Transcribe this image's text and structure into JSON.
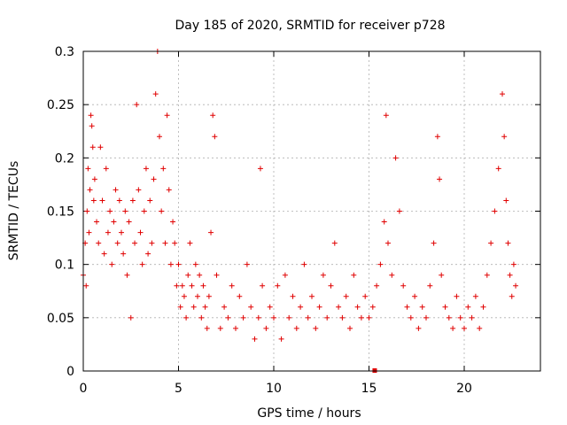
{
  "chart_data": {
    "type": "scatter",
    "title": "Day 185 of 2020, SRMTID for receiver p728",
    "xlabel": "GPS time / hours",
    "ylabel": "SRMTID / TECUs",
    "xlim": [
      0,
      24
    ],
    "ylim": [
      0,
      0.3
    ],
    "x_ticks": [
      0,
      5,
      10,
      15,
      20
    ],
    "x_tick_labels": [
      "0",
      "5",
      "10",
      "15",
      "20"
    ],
    "y_ticks": [
      0,
      0.05,
      0.1,
      0.15,
      0.2,
      0.25,
      0.3
    ],
    "y_tick_labels": [
      "0",
      "0.05",
      "0.1",
      "0.15",
      "0.2",
      "0.25",
      "0.3"
    ],
    "grid": true,
    "marker": "+",
    "color": "#e00000",
    "outlier_marker": {
      "x": 15.3,
      "y": 0.0,
      "shape": "square"
    },
    "series": [
      {
        "name": "SRMTID",
        "points": [
          [
            0.0,
            0.09
          ],
          [
            0.1,
            0.12
          ],
          [
            0.15,
            0.08
          ],
          [
            0.2,
            0.15
          ],
          [
            0.25,
            0.19
          ],
          [
            0.3,
            0.13
          ],
          [
            0.35,
            0.17
          ],
          [
            0.4,
            0.24
          ],
          [
            0.45,
            0.23
          ],
          [
            0.5,
            0.21
          ],
          [
            0.55,
            0.16
          ],
          [
            0.6,
            0.18
          ],
          [
            0.7,
            0.14
          ],
          [
            0.8,
            0.12
          ],
          [
            0.9,
            0.21
          ],
          [
            1.0,
            0.16
          ],
          [
            1.1,
            0.11
          ],
          [
            1.2,
            0.19
          ],
          [
            1.3,
            0.13
          ],
          [
            1.4,
            0.15
          ],
          [
            1.5,
            0.1
          ],
          [
            1.6,
            0.14
          ],
          [
            1.7,
            0.17
          ],
          [
            1.8,
            0.12
          ],
          [
            1.9,
            0.16
          ],
          [
            2.0,
            0.13
          ],
          [
            2.1,
            0.11
          ],
          [
            2.2,
            0.15
          ],
          [
            2.3,
            0.09
          ],
          [
            2.4,
            0.14
          ],
          [
            2.5,
            0.05
          ],
          [
            2.6,
            0.16
          ],
          [
            2.7,
            0.12
          ],
          [
            2.8,
            0.25
          ],
          [
            2.9,
            0.17
          ],
          [
            3.0,
            0.13
          ],
          [
            3.1,
            0.1
          ],
          [
            3.2,
            0.15
          ],
          [
            3.3,
            0.19
          ],
          [
            3.4,
            0.11
          ],
          [
            3.5,
            0.16
          ],
          [
            3.6,
            0.12
          ],
          [
            3.7,
            0.18
          ],
          [
            3.8,
            0.26
          ],
          [
            3.9,
            0.3
          ],
          [
            4.0,
            0.22
          ],
          [
            4.1,
            0.15
          ],
          [
            4.2,
            0.19
          ],
          [
            4.3,
            0.12
          ],
          [
            4.4,
            0.24
          ],
          [
            4.5,
            0.17
          ],
          [
            4.6,
            0.1
          ],
          [
            4.7,
            0.14
          ],
          [
            4.8,
            0.12
          ],
          [
            4.9,
            0.08
          ],
          [
            5.0,
            0.1
          ],
          [
            5.1,
            0.06
          ],
          [
            5.2,
            0.08
          ],
          [
            5.3,
            0.07
          ],
          [
            5.4,
            0.05
          ],
          [
            5.5,
            0.09
          ],
          [
            5.6,
            0.12
          ],
          [
            5.7,
            0.08
          ],
          [
            5.8,
            0.06
          ],
          [
            5.9,
            0.1
          ],
          [
            6.0,
            0.07
          ],
          [
            6.1,
            0.09
          ],
          [
            6.2,
            0.05
          ],
          [
            6.3,
            0.08
          ],
          [
            6.4,
            0.06
          ],
          [
            6.5,
            0.04
          ],
          [
            6.6,
            0.07
          ],
          [
            6.7,
            0.13
          ],
          [
            6.8,
            0.24
          ],
          [
            6.9,
            0.22
          ],
          [
            7.0,
            0.09
          ],
          [
            7.2,
            0.04
          ],
          [
            7.4,
            0.06
          ],
          [
            7.6,
            0.05
          ],
          [
            7.8,
            0.08
          ],
          [
            8.0,
            0.04
          ],
          [
            8.2,
            0.07
          ],
          [
            8.4,
            0.05
          ],
          [
            8.6,
            0.1
          ],
          [
            8.8,
            0.06
          ],
          [
            9.0,
            0.03
          ],
          [
            9.2,
            0.05
          ],
          [
            9.3,
            0.19
          ],
          [
            9.4,
            0.08
          ],
          [
            9.6,
            0.04
          ],
          [
            9.8,
            0.06
          ],
          [
            10.0,
            0.05
          ],
          [
            10.2,
            0.08
          ],
          [
            10.4,
            0.03
          ],
          [
            10.6,
            0.09
          ],
          [
            10.8,
            0.05
          ],
          [
            11.0,
            0.07
          ],
          [
            11.2,
            0.04
          ],
          [
            11.4,
            0.06
          ],
          [
            11.6,
            0.1
          ],
          [
            11.8,
            0.05
          ],
          [
            12.0,
            0.07
          ],
          [
            12.2,
            0.04
          ],
          [
            12.4,
            0.06
          ],
          [
            12.6,
            0.09
          ],
          [
            12.8,
            0.05
          ],
          [
            13.0,
            0.08
          ],
          [
            13.2,
            0.12
          ],
          [
            13.4,
            0.06
          ],
          [
            13.6,
            0.05
          ],
          [
            13.8,
            0.07
          ],
          [
            14.0,
            0.04
          ],
          [
            14.2,
            0.09
          ],
          [
            14.4,
            0.06
          ],
          [
            14.6,
            0.05
          ],
          [
            14.8,
            0.07
          ],
          [
            15.0,
            0.05
          ],
          [
            15.2,
            0.06
          ],
          [
            15.4,
            0.08
          ],
          [
            15.6,
            0.1
          ],
          [
            15.8,
            0.14
          ],
          [
            15.9,
            0.24
          ],
          [
            16.0,
            0.12
          ],
          [
            16.2,
            0.09
          ],
          [
            16.4,
            0.2
          ],
          [
            16.6,
            0.15
          ],
          [
            16.8,
            0.08
          ],
          [
            17.0,
            0.06
          ],
          [
            17.2,
            0.05
          ],
          [
            17.4,
            0.07
          ],
          [
            17.6,
            0.04
          ],
          [
            17.8,
            0.06
          ],
          [
            18.0,
            0.05
          ],
          [
            18.2,
            0.08
          ],
          [
            18.4,
            0.12
          ],
          [
            18.6,
            0.22
          ],
          [
            18.7,
            0.18
          ],
          [
            18.8,
            0.09
          ],
          [
            19.0,
            0.06
          ],
          [
            19.2,
            0.05
          ],
          [
            19.4,
            0.04
          ],
          [
            19.6,
            0.07
          ],
          [
            19.8,
            0.05
          ],
          [
            20.0,
            0.04
          ],
          [
            20.2,
            0.06
          ],
          [
            20.4,
            0.05
          ],
          [
            20.6,
            0.07
          ],
          [
            20.8,
            0.04
          ],
          [
            21.0,
            0.06
          ],
          [
            21.2,
            0.09
          ],
          [
            21.4,
            0.12
          ],
          [
            21.6,
            0.15
          ],
          [
            21.8,
            0.19
          ],
          [
            22.0,
            0.26
          ],
          [
            22.1,
            0.22
          ],
          [
            22.2,
            0.16
          ],
          [
            22.3,
            0.12
          ],
          [
            22.4,
            0.09
          ],
          [
            22.5,
            0.07
          ],
          [
            22.6,
            0.1
          ],
          [
            22.7,
            0.08
          ]
        ]
      }
    ]
  }
}
